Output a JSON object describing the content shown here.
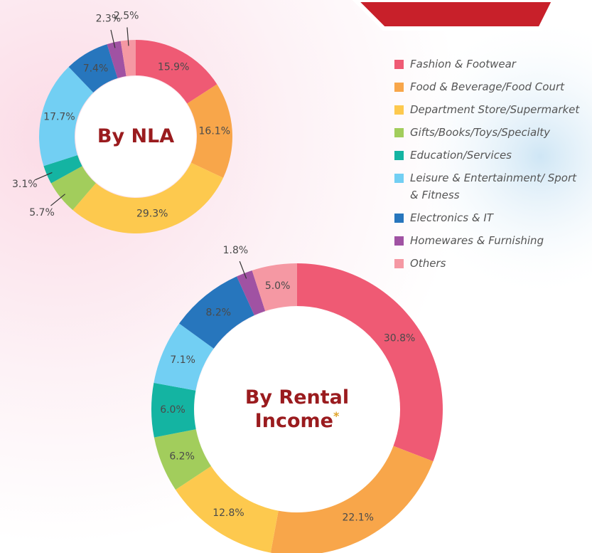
{
  "legend": {
    "categories": [
      "Fashion & Footwear",
      "Food & Beverage/Food Court",
      "Department Store/Supermarket",
      "Gifts/Books/Toys/Specialty",
      "Education/Services",
      "Leisure & Entertainment/ Sport & Fitness",
      "Electronics & IT",
      "Homewares & Furnishing",
      "Others"
    ],
    "colors": [
      "#ef5a74",
      "#f8a64a",
      "#fdc94e",
      "#a2cd5c",
      "#14b4a2",
      "#72cff3",
      "#2776bd",
      "#a052a3",
      "#f598a3"
    ]
  },
  "chart_data": [
    {
      "type": "donut",
      "title": "By NLA",
      "values": [
        15.9,
        16.1,
        29.3,
        5.7,
        3.1,
        17.7,
        7.4,
        2.3,
        2.5
      ],
      "value_labels": [
        "15.9%",
        "16.1%",
        "29.3%",
        "5.7%",
        "3.1%",
        "17.7%",
        "7.4%",
        "2.3%",
        "2.5%"
      ]
    },
    {
      "type": "donut",
      "title": "By Rental Income",
      "title_mark": "*",
      "values": [
        30.8,
        22.1,
        12.8,
        6.2,
        6.0,
        7.1,
        8.2,
        1.8,
        5.0
      ],
      "value_labels": [
        "30.8%",
        "22.1%",
        "12.8%",
        "6.2%",
        "6.0%",
        "7.1%",
        "8.2%",
        "1.8%",
        "5.0%"
      ]
    }
  ]
}
